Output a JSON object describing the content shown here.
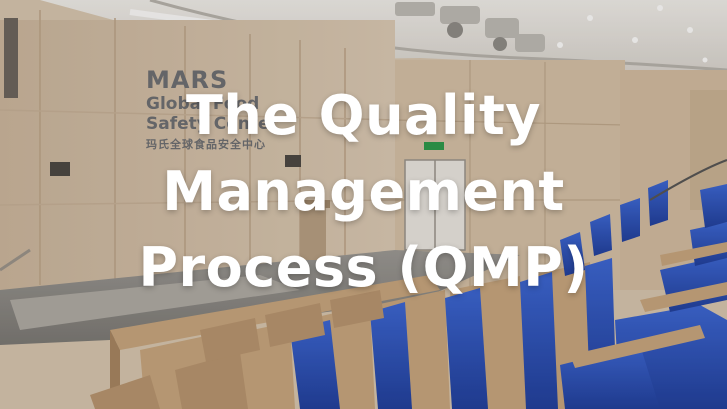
{
  "banner": {
    "title_lines": [
      "The Quality",
      "Management",
      "Process (QMP)"
    ]
  },
  "background": {
    "sign_brand": "MARS",
    "sign_line1": "Global Food",
    "sign_line2": "Safety Center",
    "sign_chinese": "玛氏全球食品安全中心"
  },
  "colors": {
    "seat_blue": "#2d56c4",
    "wood": "#c9a77f",
    "wall": "#d8c9b4"
  }
}
